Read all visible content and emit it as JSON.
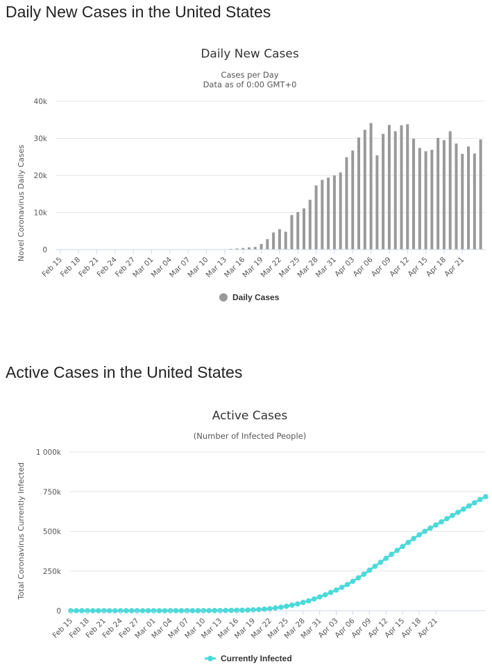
{
  "headings": {
    "daily": "Daily New Cases in the United States",
    "active": "Active Cases in the United States"
  },
  "colors": {
    "bar": "#999999",
    "line": "#4dd9d9"
  },
  "chart_data": [
    {
      "type": "bar",
      "title": "Daily New Cases",
      "subtitle": [
        "Cases per Day",
        "Data as of 0:00 GMT+0"
      ],
      "ylabel": "Novel Coronavirus Daily Cases",
      "ylim": [
        0,
        40000
      ],
      "yticks": [
        0,
        10000,
        20000,
        30000,
        40000
      ],
      "ytick_labels": [
        "0",
        "10k",
        "20k",
        "30k",
        "40k"
      ],
      "xtick_labels": [
        "Feb 15",
        "Feb 18",
        "Feb 21",
        "Feb 24",
        "Feb 27",
        "Mar 01",
        "Mar 04",
        "Mar 07",
        "Mar 10",
        "Mar 13",
        "Mar 16",
        "Mar 19",
        "Mar 22",
        "Mar 25",
        "Mar 28",
        "Mar 31",
        "Apr 03",
        "Apr 06",
        "Apr 09",
        "Apr 12",
        "Apr 15",
        "Apr 18",
        "Apr 21"
      ],
      "legend": "Daily Cases",
      "legend_position": "bottom-center",
      "grid": true,
      "x_start": "Feb 15",
      "values": [
        0,
        0,
        0,
        0,
        0,
        0,
        0,
        0,
        0,
        0,
        0,
        0,
        0,
        0,
        0,
        0,
        0,
        0,
        0,
        0,
        0,
        0,
        0,
        0,
        0,
        50,
        60,
        90,
        200,
        300,
        400,
        600,
        700,
        1500,
        2800,
        4600,
        5500,
        4800,
        9300,
        10100,
        11100,
        13400,
        17300,
        18800,
        19400,
        20000,
        20800,
        24900,
        26700,
        30200,
        32300,
        34100,
        25400,
        31200,
        33600,
        31900,
        33500,
        33800,
        29900,
        27400,
        26500,
        26900,
        30100,
        29500,
        31900,
        28600,
        25800,
        27800,
        25900,
        29700
      ]
    },
    {
      "type": "line",
      "title": "Active Cases",
      "subtitle": [
        "(Number of Infected People)"
      ],
      "ylabel": "Total Coronavirus Currently Infected",
      "ylim": [
        0,
        1000000
      ],
      "yticks": [
        0,
        250000,
        500000,
        750000,
        1000000
      ],
      "ytick_labels": [
        "0",
        "250k",
        "500k",
        "750k",
        "1 000k"
      ],
      "xtick_labels": [
        "Feb 15",
        "Feb 18",
        "Feb 21",
        "Feb 24",
        "Feb 27",
        "Mar 01",
        "Mar 04",
        "Mar 07",
        "Mar 10",
        "Mar 13",
        "Mar 16",
        "Mar 19",
        "Mar 22",
        "Mar 25",
        "Mar 28",
        "Mar 31",
        "Apr 03",
        "Apr 06",
        "Apr 09",
        "Apr 12",
        "Apr 15",
        "Apr 18",
        "Apr 21"
      ],
      "legend": "Currently Infected",
      "legend_position": "bottom-center",
      "grid": true,
      "x_start": "Feb 15",
      "values": [
        10,
        10,
        10,
        10,
        10,
        10,
        10,
        10,
        10,
        10,
        10,
        10,
        10,
        15,
        20,
        30,
        40,
        50,
        60,
        70,
        80,
        100,
        150,
        200,
        400,
        600,
        800,
        1000,
        1400,
        1800,
        2500,
        3200,
        4000,
        5500,
        7500,
        10000,
        13000,
        17000,
        22000,
        28000,
        35000,
        43000,
        52000,
        62000,
        74000,
        87000,
        100000,
        115000,
        130000,
        147000,
        165000,
        185000,
        207000,
        230000,
        255000,
        280000,
        305000,
        330000,
        355000,
        380000,
        405000,
        430000,
        455000,
        478000,
        500000,
        520000,
        540000,
        560000,
        580000,
        600000,
        620000,
        640000,
        660000,
        680000,
        700000,
        718000
      ]
    }
  ]
}
